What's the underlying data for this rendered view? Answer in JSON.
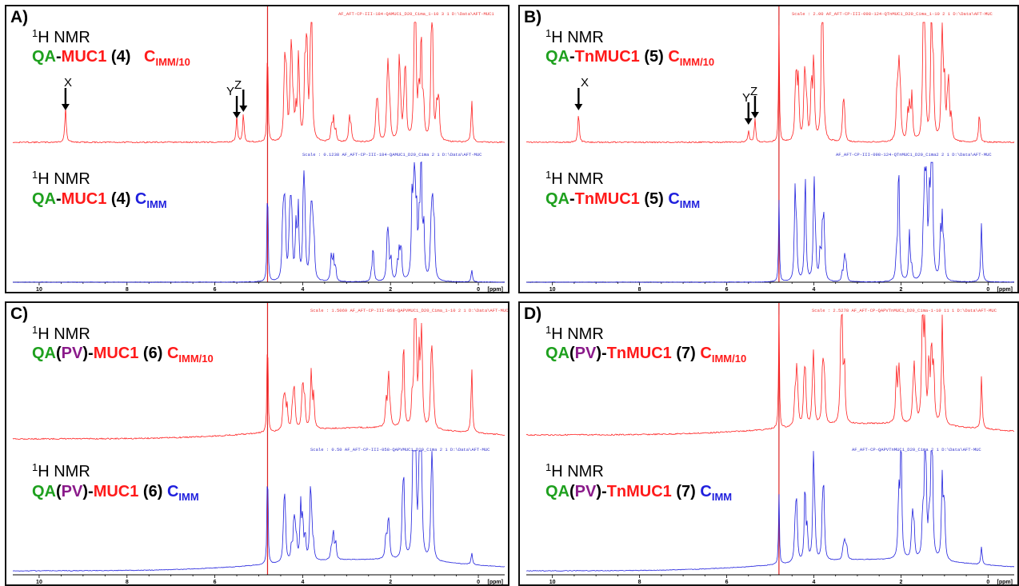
{
  "nmr_label": "1H NMR",
  "nmr_base": "H NMR",
  "nmr_sup": "1",
  "ppm_unit": "[ppm]",
  "colors": {
    "top_spectrum": "#ff2020",
    "bottom_spectrum": "#2020dd",
    "residual_line": "#dd2222"
  },
  "panels": {
    "A": {
      "label": "A)",
      "top": {
        "parts": [
          "QA",
          "-",
          "MUC1",
          " (",
          "4",
          ")",
          "C",
          "IMM/10"
        ]
      },
      "bottom": {
        "parts": [
          "QA",
          "-",
          "MUC1",
          " (",
          "4",
          ") ",
          "C",
          "IMM"
        ]
      },
      "header_top": "AF_AFT-CP-III-184-QAMUC1_D20_Cima_1-10  3  1  D:\\Data\\AFT-MUC1",
      "header_bottom": "Scale : 0.1238    AF_AFT-CP-III-184-QAMUC1_D20_Cima  2  1  D:\\Data\\AFT-MUC",
      "markers": [
        "X",
        "Y",
        "Z"
      ]
    },
    "B": {
      "label": "B)",
      "top": {
        "parts": [
          "QA",
          "-",
          "TnMUC1",
          " (",
          "5",
          ") ",
          "C",
          "IMM/10"
        ]
      },
      "bottom": {
        "parts": [
          "QA",
          "-",
          "TnMUC1",
          " (",
          "5",
          ") ",
          "C",
          "IMM"
        ]
      },
      "header_top": "Scale : 2.00    AF_AFT-CP-III-098-124-QTnMUC1_D20_Cima_1-10  2  1  D:\\Data\\AFT-MUC",
      "header_bottom": "AF_AFT-CP-III-098-124-QTnMUC1_D20_Cima2  2  1  D:\\Data\\AFT-MUC",
      "markers": [
        "X",
        "Y",
        "Z"
      ]
    },
    "C": {
      "label": "C)",
      "top": {
        "parts": [
          "QA",
          "(",
          "PV",
          ")",
          "-",
          "MUC1",
          " (",
          "6",
          ") ",
          "C",
          "IMM/10"
        ]
      },
      "bottom": {
        "parts": [
          "QA",
          "(",
          "PV",
          ")",
          "-",
          "MUC1",
          " (",
          "6",
          ") ",
          "C",
          "IMM"
        ]
      },
      "header_top": "Scale : 1.5069    AF_AFT-CP-III-058-QAPVMUC1_D20_Cima_1-10  2  1  D:\\Data\\AFT-MUC",
      "header_bottom": "Scale : 0.50    AF_AFT-CP-III-058-QAPVMUC1_D20_Cima  2  1  D:\\Data\\AFT-MUC"
    },
    "D": {
      "label": "D)",
      "top": {
        "parts": [
          "QA",
          "(",
          "PV",
          ")",
          "-",
          "TnMUC1",
          " (",
          "7",
          ") ",
          "C",
          "IMM/10"
        ]
      },
      "bottom": {
        "parts": [
          "QA",
          "(",
          "PV",
          ")",
          "-",
          "TnMUC1",
          " (",
          "7",
          ") ",
          "C",
          "IMM"
        ]
      },
      "header_top": "Scale : 2.5278    AF_AFT-CP-QAPVTnMUC1_D20_Cima-1-10  11  1  D:\\Data\\AFT-MUC",
      "header_bottom": "AF_AFT-CP-QAPVTnMUC1_D20_Cima  2  1  D:\\Data\\AFT-MUC"
    }
  },
  "chart_data": [
    {
      "type": "line",
      "panel": "A",
      "xlabel": "[ppm]",
      "xlim": [
        10.6,
        -0.6
      ],
      "x_ticks": [
        10,
        8,
        6,
        4,
        2,
        0
      ],
      "series": [
        {
          "name": "QA-MUC1 (4) CIMM/10",
          "peaks": [
            [
              9.4,
              0.3
            ],
            [
              5.5,
              0.22
            ],
            [
              5.35,
              0.25
            ],
            [
              4.8,
              1.0
            ],
            [
              4.4,
              0.45
            ],
            [
              4.25,
              0.5
            ],
            [
              4.1,
              0.4
            ],
            [
              3.95,
              0.55
            ],
            [
              3.8,
              0.6
            ],
            [
              3.3,
              0.2
            ],
            [
              2.9,
              0.12
            ],
            [
              2.3,
              0.2
            ],
            [
              2.05,
              0.45
            ],
            [
              1.8,
              0.35
            ],
            [
              1.65,
              0.4
            ],
            [
              1.45,
              0.75
            ],
            [
              1.3,
              0.7
            ],
            [
              1.05,
              0.65
            ],
            [
              0.9,
              0.3
            ],
            [
              0.15,
              0.35
            ]
          ]
        },
        {
          "name": "QA-MUC1 (4) CIMM",
          "peaks": [
            [
              4.8,
              1.0
            ],
            [
              4.4,
              0.5
            ],
            [
              4.25,
              0.45
            ],
            [
              4.1,
              0.4
            ],
            [
              3.95,
              0.45
            ],
            [
              3.8,
              0.5
            ],
            [
              3.3,
              0.2
            ],
            [
              2.4,
              0.15
            ],
            [
              2.05,
              0.35
            ],
            [
              1.8,
              0.25
            ],
            [
              1.45,
              0.85
            ],
            [
              1.3,
              0.9
            ],
            [
              1.05,
              0.5
            ],
            [
              0.15,
              0.1
            ]
          ]
        }
      ]
    },
    {
      "type": "line",
      "panel": "B",
      "xlabel": "[ppm]",
      "xlim": [
        10.6,
        -0.6
      ],
      "x_ticks": [
        10,
        8,
        6,
        4,
        2,
        0
      ],
      "series": [
        {
          "name": "QA-TnMUC1 (5) CIMM/10",
          "peaks": [
            [
              9.4,
              0.25
            ],
            [
              5.5,
              0.1
            ],
            [
              5.35,
              0.2
            ],
            [
              4.8,
              1.0
            ],
            [
              4.4,
              0.45
            ],
            [
              4.2,
              0.4
            ],
            [
              4.0,
              0.45
            ],
            [
              3.8,
              0.7
            ],
            [
              3.3,
              0.2
            ],
            [
              2.05,
              0.6
            ],
            [
              1.8,
              0.3
            ],
            [
              1.45,
              0.9
            ],
            [
              1.3,
              0.8
            ],
            [
              1.05,
              0.65
            ],
            [
              0.9,
              0.3
            ],
            [
              0.2,
              0.25
            ]
          ]
        },
        {
          "name": "QA-TnMUC1 (5) CIMM",
          "peaks": [
            [
              4.8,
              0.7
            ],
            [
              4.4,
              0.4
            ],
            [
              4.2,
              0.35
            ],
            [
              4.0,
              0.4
            ],
            [
              3.8,
              0.45
            ],
            [
              3.3,
              0.15
            ],
            [
              2.05,
              0.5
            ],
            [
              1.8,
              0.2
            ],
            [
              1.45,
              0.75
            ],
            [
              1.3,
              0.85
            ],
            [
              1.05,
              0.5
            ],
            [
              0.15,
              0.5
            ]
          ]
        }
      ]
    },
    {
      "type": "line",
      "panel": "C",
      "xlabel": "[ppm]",
      "xlim": [
        10.6,
        -0.6
      ],
      "x_ticks": [
        10,
        8,
        6,
        4,
        2,
        0
      ],
      "series": [
        {
          "name": "QA(PV)-MUC1 (6) CIMM/10",
          "peaks": [
            [
              4.8,
              1.0
            ],
            [
              4.4,
              0.25
            ],
            [
              4.2,
              0.25
            ],
            [
              4.0,
              0.3
            ],
            [
              3.8,
              0.3
            ],
            [
              2.05,
              0.3
            ],
            [
              1.7,
              0.35
            ],
            [
              1.45,
              0.8
            ],
            [
              1.3,
              0.65
            ],
            [
              1.05,
              0.5
            ],
            [
              0.15,
              0.55
            ]
          ]
        },
        {
          "name": "QA(PV)-MUC1 (6) CIMM",
          "peaks": [
            [
              4.8,
              1.0
            ],
            [
              4.4,
              0.35
            ],
            [
              4.2,
              0.3
            ],
            [
              4.0,
              0.35
            ],
            [
              3.8,
              0.35
            ],
            [
              3.3,
              0.2
            ],
            [
              2.05,
              0.3
            ],
            [
              1.7,
              0.35
            ],
            [
              1.45,
              0.75
            ],
            [
              1.3,
              0.85
            ],
            [
              1.05,
              0.5
            ],
            [
              0.15,
              0.1
            ]
          ]
        }
      ]
    },
    {
      "type": "line",
      "panel": "D",
      "xlabel": "[ppm]",
      "xlim": [
        10.6,
        -0.6
      ],
      "x_ticks": [
        10,
        8,
        6,
        4,
        2,
        0
      ],
      "series": [
        {
          "name": "QA(PV)-TnMUC1 (7) CIMM/10",
          "peaks": [
            [
              4.8,
              1.0
            ],
            [
              3.35,
              0.65
            ],
            [
              4.4,
              0.3
            ],
            [
              4.2,
              0.3
            ],
            [
              4.0,
              0.35
            ],
            [
              3.8,
              0.35
            ],
            [
              2.05,
              0.45
            ],
            [
              1.7,
              0.3
            ],
            [
              1.45,
              0.8
            ],
            [
              1.3,
              0.65
            ],
            [
              1.05,
              0.5
            ],
            [
              0.15,
              0.45
            ]
          ]
        },
        {
          "name": "QA(PV)-TnMUC1 (7) CIMM",
          "peaks": [
            [
              4.8,
              0.6
            ],
            [
              4.4,
              0.35
            ],
            [
              4.2,
              0.35
            ],
            [
              4.0,
              0.45
            ],
            [
              3.8,
              0.4
            ],
            [
              3.3,
              0.15
            ],
            [
              2.05,
              0.55
            ],
            [
              1.7,
              0.25
            ],
            [
              1.45,
              0.8
            ],
            [
              1.3,
              0.9
            ],
            [
              1.05,
              0.5
            ],
            [
              0.15,
              0.15
            ]
          ]
        }
      ]
    }
  ]
}
